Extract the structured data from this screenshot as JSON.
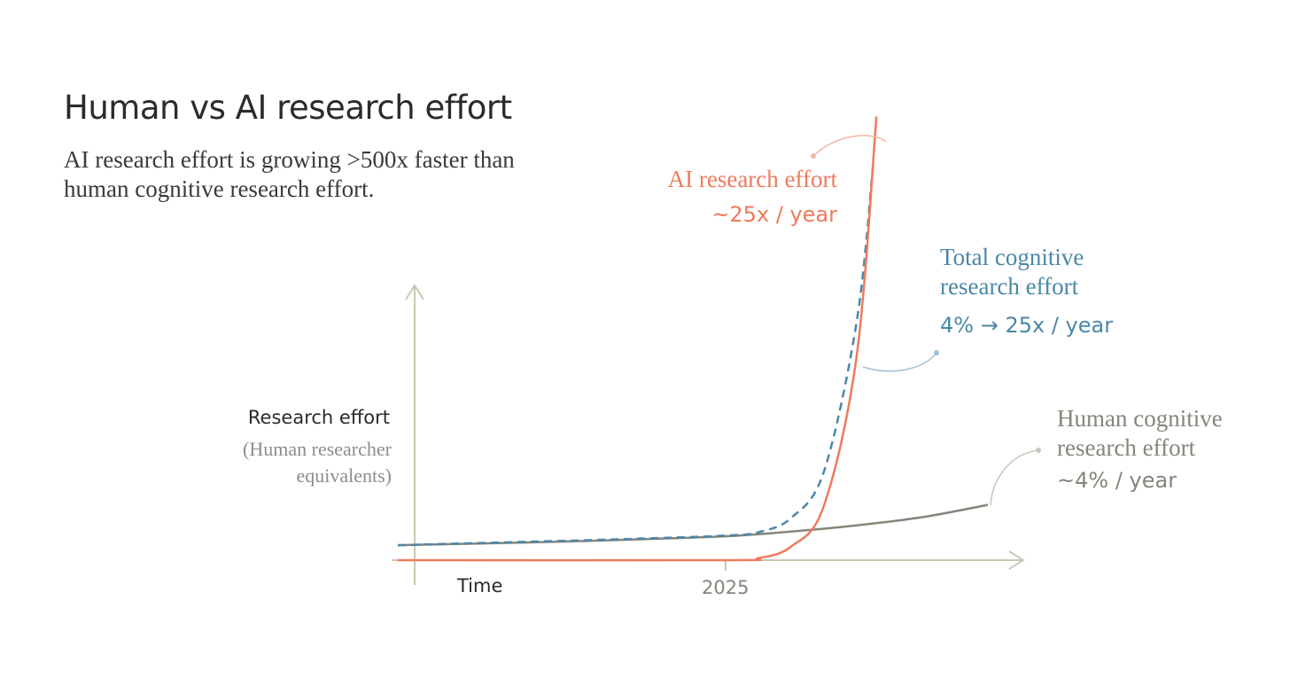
{
  "title": "Human vs AI research effort",
  "subtitle": "AI research effort is growing >500x faster than human cognitive research effort.",
  "colors": {
    "ai": "#ee7a5c",
    "total": "#4b87a8",
    "human": "#85857a",
    "axis": "#c9c7b3",
    "text_dark": "#2b2b2b",
    "text_muted": "#8f8c88"
  },
  "chart_data": {
    "type": "line",
    "y_axis_label": "Research effort",
    "y_axis_sublabel": "(Human researcher equivalents)",
    "x_axis_label": "Time",
    "x_ticks": [
      "2025"
    ],
    "y_scale": "linear",
    "grid": false,
    "series": [
      {
        "id": "ai",
        "name": "AI research effort",
        "growth_label": "~25x / year",
        "style": "solid",
        "points": [
          [
            -10,
            0.0
          ],
          [
            0,
            0.0
          ],
          [
            1,
            0.03
          ],
          [
            2,
            0.2
          ],
          [
            3,
            0.8
          ],
          [
            4,
            3.0
          ],
          [
            4.6,
            6.5
          ]
        ]
      },
      {
        "id": "total",
        "name": "Total cognitive research effort",
        "growth_label": "4% → 25x / year",
        "style": "dashed",
        "points": [
          [
            -10,
            0.22
          ],
          [
            -6,
            0.27
          ],
          [
            -3,
            0.31
          ],
          [
            0,
            0.36
          ],
          [
            1,
            0.41
          ],
          [
            2,
            0.62
          ],
          [
            3,
            1.3
          ],
          [
            4,
            3.5
          ],
          [
            4.5,
            5.8
          ]
        ]
      },
      {
        "id": "human",
        "name": "Human cognitive research effort",
        "growth_label": "~4% / year",
        "style": "solid",
        "points": [
          [
            -10,
            0.22
          ],
          [
            -6,
            0.26
          ],
          [
            -3,
            0.3
          ],
          [
            0,
            0.35
          ],
          [
            2,
            0.42
          ],
          [
            4,
            0.51
          ],
          [
            6,
            0.63
          ],
          [
            8,
            0.81
          ]
        ]
      }
    ]
  }
}
